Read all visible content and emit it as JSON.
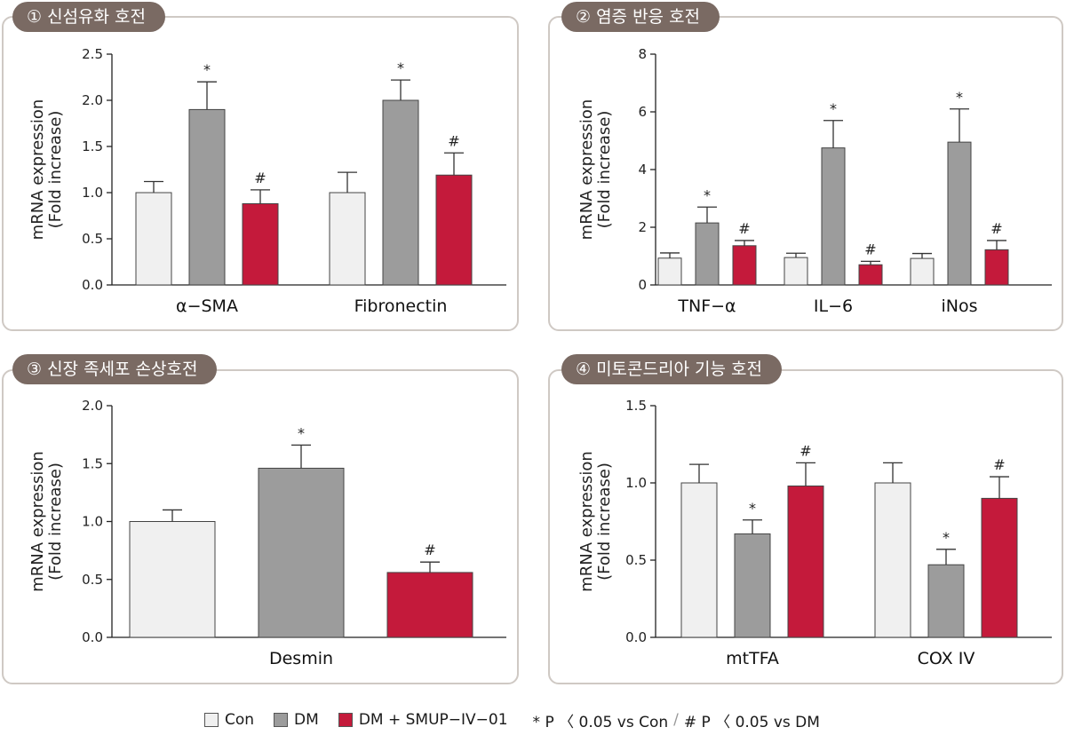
{
  "colors": {
    "Con": "#f0f0f0",
    "DM": "#9c9c9c",
    "DM + SMUP-IV-01": "#c41a3b"
  },
  "legend": {
    "items": [
      {
        "label": "Con",
        "color": "#f0f0f0"
      },
      {
        "label": "DM",
        "color": "#9c9c9c"
      },
      {
        "label": "DM + SMUP−IV−01",
        "color": "#c41a3b"
      }
    ],
    "note1": "* P 〈 0.05 vs Con",
    "separator": "/",
    "note2": "# P 〈 0.05 vs DM"
  },
  "chart_data": [
    {
      "type": "bar",
      "title": "① 신섬유화 호전",
      "ylabel": "mRNA expression\n(Fold increase)",
      "ylim": [
        0,
        2.5
      ],
      "yticks": [
        "0.0",
        "0.5",
        "1.0",
        "1.5",
        "2.0",
        "2.5"
      ],
      "categories": [
        "α−SMA",
        "Fibronectin"
      ],
      "series": [
        {
          "name": "Con",
          "values": [
            1.0,
            1.0
          ],
          "errors": [
            0.12,
            0.22
          ],
          "marks": [
            "",
            ""
          ]
        },
        {
          "name": "DM",
          "values": [
            1.9,
            2.0
          ],
          "errors": [
            0.3,
            0.22
          ],
          "marks": [
            "*",
            "*"
          ]
        },
        {
          "name": "DM + SMUP-IV-01",
          "values": [
            0.88,
            1.19
          ],
          "errors": [
            0.15,
            0.24
          ],
          "marks": [
            "#",
            "#"
          ]
        }
      ]
    },
    {
      "type": "bar",
      "title": "② 염증 반응 호전",
      "ylabel": "mRNA expression\n(Fold increase)",
      "ylim": [
        0,
        8
      ],
      "yticks": [
        "0",
        "2",
        "4",
        "6",
        "8"
      ],
      "categories": [
        "TNF−α",
        "IL−6",
        "iNos"
      ],
      "series": [
        {
          "name": "Con",
          "values": [
            0.93,
            0.95,
            0.92
          ],
          "errors": [
            0.18,
            0.15,
            0.17
          ],
          "marks": [
            "",
            "",
            ""
          ]
        },
        {
          "name": "DM",
          "values": [
            2.15,
            4.75,
            4.95
          ],
          "errors": [
            0.55,
            0.95,
            1.15
          ],
          "marks": [
            "*",
            "*",
            "*"
          ]
        },
        {
          "name": "DM + SMUP-IV-01",
          "values": [
            1.36,
            0.7,
            1.22
          ],
          "errors": [
            0.18,
            0.12,
            0.32
          ],
          "marks": [
            "#",
            "#",
            "#"
          ]
        }
      ]
    },
    {
      "type": "bar",
      "title": "③ 신장 족세포 손상호전",
      "ylabel": "mRNA expression\n(Fold increase)",
      "ylim": [
        0,
        2.0
      ],
      "yticks": [
        "0.0",
        "0.5",
        "1.0",
        "1.5",
        "2.0"
      ],
      "categories": [
        "Desmin"
      ],
      "series": [
        {
          "name": "Con",
          "values": [
            1.0
          ],
          "errors": [
            0.1
          ],
          "marks": [
            ""
          ]
        },
        {
          "name": "DM",
          "values": [
            1.46
          ],
          "errors": [
            0.2
          ],
          "marks": [
            "*"
          ]
        },
        {
          "name": "DM + SMUP-IV-01",
          "values": [
            0.56
          ],
          "errors": [
            0.09
          ],
          "marks": [
            "#"
          ]
        }
      ]
    },
    {
      "type": "bar",
      "title": "④ 미토콘드리아 기능 호전",
      "ylabel": "mRNA expression\n(Fold increase)",
      "ylim": [
        0,
        1.5
      ],
      "yticks": [
        "0.0",
        "0.5",
        "1.0",
        "1.5"
      ],
      "categories": [
        "mtTFA",
        "COX IV"
      ],
      "series": [
        {
          "name": "Con",
          "values": [
            1.0,
            1.0
          ],
          "errors": [
            0.12,
            0.13
          ],
          "marks": [
            "",
            ""
          ]
        },
        {
          "name": "DM",
          "values": [
            0.67,
            0.47
          ],
          "errors": [
            0.09,
            0.1
          ],
          "marks": [
            "*",
            "*"
          ]
        },
        {
          "name": "DM + SMUP-IV-01",
          "values": [
            0.98,
            0.9
          ],
          "errors": [
            0.15,
            0.14
          ],
          "marks": [
            "#",
            "#"
          ]
        }
      ]
    }
  ]
}
